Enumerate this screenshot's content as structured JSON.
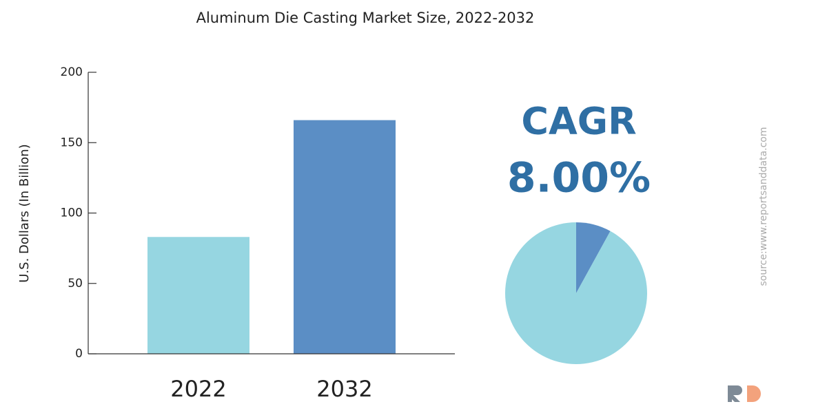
{
  "chart_data": [
    {
      "type": "bar",
      "title": "Aluminum Die Casting Market Size, 2022-2032",
      "y_label": "U.S. Dollars (In Billion)",
      "categories": [
        "2022",
        "2032"
      ],
      "values": [
        83,
        166
      ],
      "colors": [
        "#96d6e1",
        "#5b8ec5"
      ],
      "ylim": [
        0,
        200
      ],
      "yticks": [
        0,
        50,
        100,
        150,
        200
      ]
    },
    {
      "type": "pie",
      "annotations": [
        "CAGR",
        "8.00%"
      ],
      "values": [
        8,
        92
      ],
      "colors": [
        "#5b8ec5",
        "#96d6e1"
      ]
    }
  ],
  "source": "source:www.reportsanddata.com"
}
